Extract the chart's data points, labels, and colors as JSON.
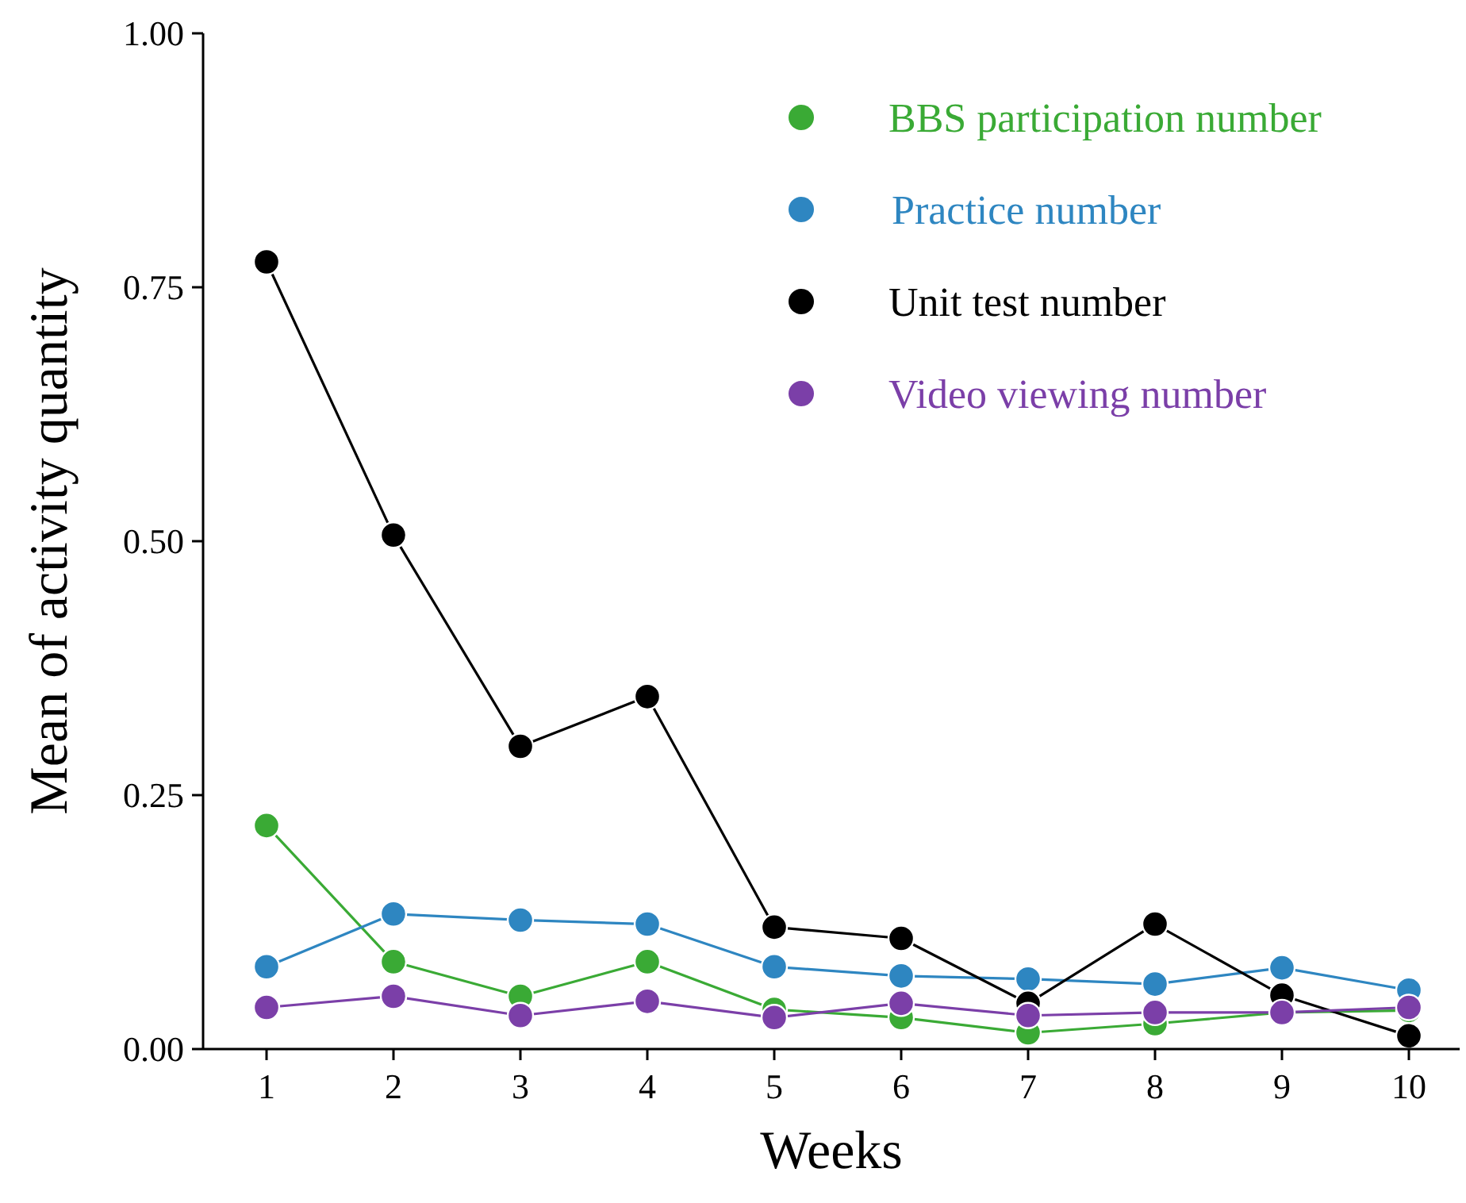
{
  "chart_data": {
    "type": "line",
    "xlabel": "Weeks",
    "ylabel": "Mean of activity quantity",
    "x": [
      1,
      2,
      3,
      4,
      5,
      6,
      7,
      8,
      9,
      10
    ],
    "xlim": [
      0.5,
      10.4
    ],
    "xticks": [
      1,
      2,
      3,
      4,
      5,
      6,
      7,
      8,
      9,
      10
    ],
    "ylim": [
      0,
      1
    ],
    "yticks": [
      {
        "value": 0,
        "label": "0.00"
      },
      {
        "value": 0.25,
        "label": "0.25"
      },
      {
        "value": 0.5,
        "label": "0.50"
      },
      {
        "value": 0.75,
        "label": "0.75"
      },
      {
        "value": 1,
        "label": "1.00"
      }
    ],
    "series": [
      {
        "name": "BBS participation number",
        "color": "#3aaa35",
        "values": [
          0.22,
          0.086,
          0.052,
          0.086,
          0.039,
          0.031,
          0.016,
          0.025,
          0.036,
          0.038
        ]
      },
      {
        "name": "Practice number",
        "color": "#2e86c1",
        "values": [
          0.081,
          0.133,
          0.127,
          0.123,
          0.081,
          0.072,
          0.069,
          0.064,
          0.08,
          0.058
        ]
      },
      {
        "name": "Unit test number",
        "color": "#000000",
        "values": [
          0.775,
          0.506,
          0.298,
          0.347,
          0.12,
          0.109,
          0.045,
          0.123,
          0.053,
          0.013
        ]
      },
      {
        "name": "Video viewing number",
        "color": "#7b3fa8",
        "values": [
          0.041,
          0.052,
          0.033,
          0.047,
          0.031,
          0.045,
          0.033,
          0.036,
          0.036,
          0.041
        ]
      }
    ],
    "marker": "circle",
    "line_style": "solid",
    "legend": "top right",
    "grid": false
  }
}
